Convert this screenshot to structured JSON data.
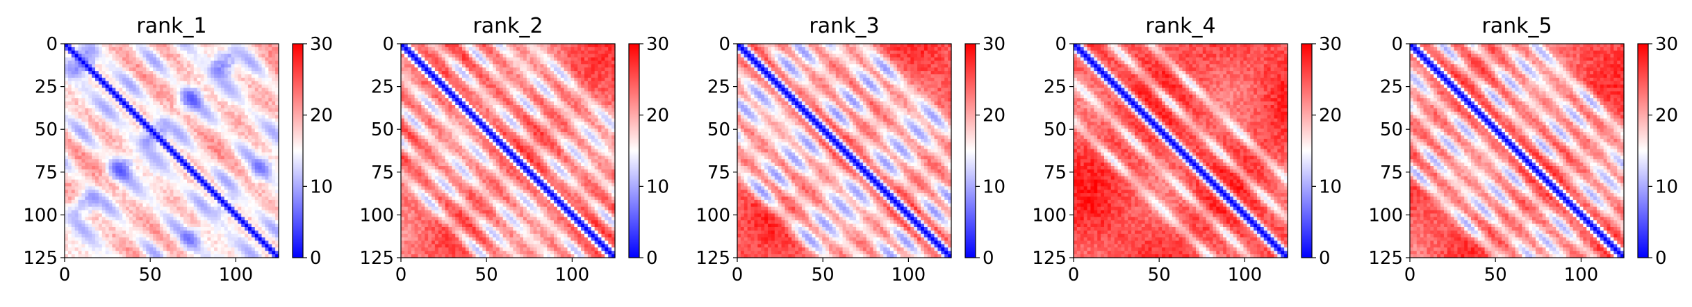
{
  "chart_data": [
    {
      "type": "heatmap",
      "title": "rank_1",
      "xlim": [
        0,
        125
      ],
      "ylim": [
        125,
        0
      ],
      "xticks": [
        0,
        50,
        100
      ],
      "yticks": [
        0,
        25,
        50,
        75,
        100,
        125
      ],
      "colorbar": {
        "range": [
          0,
          30
        ],
        "ticks": [
          0,
          10,
          20,
          30
        ],
        "colormap": "bwr",
        "colors": [
          "#0000ff",
          "#ffffff",
          "#ff0000"
        ]
      },
      "pattern": {
        "diag_width": 3.2,
        "bands": [
          14,
          42,
          70,
          98
        ],
        "band_width": 5.5,
        "band_value": 11,
        "background": 19.5,
        "blobs": true
      }
    },
    {
      "type": "heatmap",
      "title": "rank_2",
      "xlim": [
        0,
        125
      ],
      "ylim": [
        125,
        0
      ],
      "xticks": [
        0,
        50,
        100
      ],
      "yticks": [
        0,
        25,
        50,
        75,
        100,
        125
      ],
      "colorbar": {
        "range": [
          0,
          30
        ],
        "ticks": [
          0,
          10,
          20,
          30
        ],
        "colormap": "bwr",
        "colors": [
          "#0000ff",
          "#ffffff",
          "#ff0000"
        ]
      },
      "pattern": {
        "diag_width": 3.4,
        "bands": [
          19,
          38,
          57,
          76
        ],
        "band_width": 3.5,
        "band_value": 13,
        "background": 24,
        "blobs": false
      }
    },
    {
      "type": "heatmap",
      "title": "rank_3",
      "xlim": [
        0,
        125
      ],
      "ylim": [
        125,
        0
      ],
      "xticks": [
        0,
        50,
        100
      ],
      "yticks": [
        0,
        25,
        50,
        75,
        100,
        125
      ],
      "colorbar": {
        "range": [
          0,
          30
        ],
        "ticks": [
          0,
          10,
          20,
          30
        ],
        "colormap": "bwr",
        "colors": [
          "#0000ff",
          "#ffffff",
          "#ff0000"
        ]
      },
      "pattern": {
        "diag_width": 3.6,
        "bands": [
          17,
          34,
          54,
          72
        ],
        "band_width": 4.5,
        "band_value": 11,
        "background": 25,
        "blobs": false
      }
    },
    {
      "type": "heatmap",
      "title": "rank_4",
      "xlim": [
        0,
        125
      ],
      "ylim": [
        125,
        0
      ],
      "xticks": [
        0,
        50,
        100
      ],
      "yticks": [
        0,
        25,
        50,
        75,
        100,
        125
      ],
      "colorbar": {
        "range": [
          0,
          30
        ],
        "ticks": [
          0,
          10,
          20,
          30
        ],
        "colormap": "bwr",
        "colors": [
          "#0000ff",
          "#ffffff",
          "#ff0000"
        ]
      },
      "pattern": {
        "diag_width": 3.6,
        "bands": [
          22,
          45
        ],
        "band_width": 3.0,
        "band_value": 15,
        "background": 25.5,
        "blobs": false
      }
    },
    {
      "type": "heatmap",
      "title": "rank_5",
      "xlim": [
        0,
        125
      ],
      "ylim": [
        125,
        0
      ],
      "xticks": [
        0,
        50,
        100
      ],
      "yticks": [
        0,
        25,
        50,
        75,
        100,
        125
      ],
      "colorbar": {
        "range": [
          0,
          30
        ],
        "ticks": [
          0,
          10,
          20,
          30
        ],
        "colormap": "bwr",
        "colors": [
          "#0000ff",
          "#ffffff",
          "#ff0000"
        ]
      },
      "pattern": {
        "diag_width": 3.4,
        "bands": [
          18,
          36,
          54,
          72
        ],
        "band_width": 3.5,
        "band_value": 12,
        "background": 24.5,
        "blobs": false
      }
    }
  ]
}
